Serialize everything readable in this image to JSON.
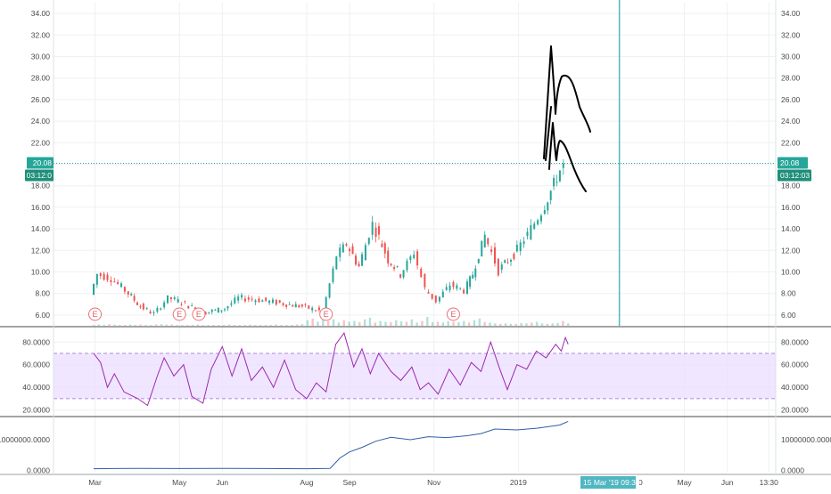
{
  "chart_data": [
    {
      "type": "candlestick",
      "panel": "price",
      "ylim": [
        5,
        35
      ],
      "y_ticks": [
        "34.00",
        "32.00",
        "30.00",
        "28.00",
        "26.00",
        "24.00",
        "22.00",
        "20.00",
        "18.00",
        "16.00",
        "14.00",
        "12.00",
        "10.00",
        "8.00",
        "6.00"
      ],
      "y_tick_values": [
        34,
        32,
        30,
        28,
        26,
        24,
        22,
        20,
        18,
        16,
        14,
        12,
        10,
        8,
        6
      ],
      "last_price": 20.08,
      "price_tag": "20.08",
      "countdown_tag": "03:12:03",
      "countdown_tag_left": "03:12:0",
      "earnings_marker": "E",
      "earnings_dates": [
        "2018-03-01",
        "2018-05-01",
        "2018-05-15",
        "2018-08-15",
        "2018-11-15"
      ],
      "key_points": [
        {
          "date": "2018-02-28",
          "close": 7.9
        },
        {
          "date": "2018-03-05",
          "close": 9.8
        },
        {
          "date": "2018-03-15",
          "close": 9.4
        },
        {
          "date": "2018-03-25",
          "close": 8.3
        },
        {
          "date": "2018-04-05",
          "close": 6.8
        },
        {
          "date": "2018-04-15",
          "close": 6.1
        },
        {
          "date": "2018-04-25",
          "close": 7.6
        },
        {
          "date": "2018-05-05",
          "close": 7.2
        },
        {
          "date": "2018-05-20",
          "close": 6.2
        },
        {
          "date": "2018-06-05",
          "close": 6.6
        },
        {
          "date": "2018-06-15",
          "close": 7.6
        },
        {
          "date": "2018-06-30",
          "close": 7.4
        },
        {
          "date": "2018-07-15",
          "close": 7.1
        },
        {
          "date": "2018-07-31",
          "close": 6.8
        },
        {
          "date": "2018-08-15",
          "close": 6.3
        },
        {
          "date": "2018-08-25",
          "close": 11.5
        },
        {
          "date": "2018-09-01",
          "close": 12.6
        },
        {
          "date": "2018-09-10",
          "close": 10.5
        },
        {
          "date": "2018-09-20",
          "close": 14.5
        },
        {
          "date": "2018-10-01",
          "close": 11.2
        },
        {
          "date": "2018-10-10",
          "close": 9.8
        },
        {
          "date": "2018-10-20",
          "close": 11.8
        },
        {
          "date": "2018-10-28",
          "close": 8.4
        },
        {
          "date": "2018-11-05",
          "close": 7.3
        },
        {
          "date": "2018-11-15",
          "close": 8.8
        },
        {
          "date": "2018-11-25",
          "close": 8.3
        },
        {
          "date": "2018-12-01",
          "close": 9.8
        },
        {
          "date": "2018-12-10",
          "close": 13.4
        },
        {
          "date": "2018-12-20",
          "close": 10.2
        },
        {
          "date": "2018-12-31",
          "close": 11.6
        },
        {
          "date": "2019-01-10",
          "close": 13.5
        },
        {
          "date": "2019-01-20",
          "close": 15.6
        },
        {
          "date": "2019-01-31",
          "close": 18.8
        },
        {
          "date": "2019-02-05",
          "close": 20.08
        }
      ],
      "volume_bars": [
        2,
        3,
        2,
        4,
        3,
        2,
        2,
        3,
        2,
        3,
        2,
        2,
        3,
        4,
        3,
        3,
        2,
        2,
        2,
        2,
        3,
        2,
        2,
        2,
        2,
        2,
        3,
        2,
        2,
        2,
        3,
        2,
        2,
        2,
        2,
        3,
        2,
        2,
        2,
        3,
        4,
        14,
        18,
        10,
        22,
        12,
        16,
        8,
        14,
        10,
        12,
        9,
        16,
        20,
        8,
        12,
        10,
        9,
        14,
        11,
        10,
        16,
        8,
        12,
        22,
        9,
        10,
        8,
        12,
        10,
        9,
        12,
        8,
        14,
        18,
        9,
        8,
        6,
        5,
        6,
        5,
        5,
        7,
        6,
        8,
        10,
        6,
        5,
        6,
        7,
        12,
        6
      ]
    },
    {
      "type": "line",
      "panel": "rsi",
      "ylim": [
        15,
        92
      ],
      "y_ticks": [
        "80.0000",
        "60.0000",
        "40.0000",
        "20.0000"
      ],
      "y_tick_values": [
        80,
        60,
        40,
        20
      ],
      "band": [
        30,
        70
      ],
      "series": [
        {
          "points": [
            {
              "date": "2018-02-28",
              "value": 70
            },
            {
              "date": "2018-03-05",
              "value": 62
            },
            {
              "date": "2018-03-10",
              "value": 40
            },
            {
              "date": "2018-03-15",
              "value": 52
            },
            {
              "date": "2018-03-22",
              "value": 36
            },
            {
              "date": "2018-04-01",
              "value": 30
            },
            {
              "date": "2018-04-08",
              "value": 24
            },
            {
              "date": "2018-04-15",
              "value": 50
            },
            {
              "date": "2018-04-20",
              "value": 66
            },
            {
              "date": "2018-04-27",
              "value": 50
            },
            {
              "date": "2018-05-04",
              "value": 60
            },
            {
              "date": "2018-05-10",
              "value": 32
            },
            {
              "date": "2018-05-18",
              "value": 26
            },
            {
              "date": "2018-05-24",
              "value": 56
            },
            {
              "date": "2018-06-01",
              "value": 76
            },
            {
              "date": "2018-06-08",
              "value": 50
            },
            {
              "date": "2018-06-15",
              "value": 74
            },
            {
              "date": "2018-06-22",
              "value": 46
            },
            {
              "date": "2018-06-30",
              "value": 58
            },
            {
              "date": "2018-07-08",
              "value": 40
            },
            {
              "date": "2018-07-16",
              "value": 64
            },
            {
              "date": "2018-07-24",
              "value": 38
            },
            {
              "date": "2018-08-01",
              "value": 30
            },
            {
              "date": "2018-08-08",
              "value": 44
            },
            {
              "date": "2018-08-15",
              "value": 36
            },
            {
              "date": "2018-08-22",
              "value": 78
            },
            {
              "date": "2018-08-28",
              "value": 88
            },
            {
              "date": "2018-09-04",
              "value": 58
            },
            {
              "date": "2018-09-10",
              "value": 74
            },
            {
              "date": "2018-09-16",
              "value": 52
            },
            {
              "date": "2018-09-22",
              "value": 70
            },
            {
              "date": "2018-10-01",
              "value": 54
            },
            {
              "date": "2018-10-08",
              "value": 46
            },
            {
              "date": "2018-10-16",
              "value": 58
            },
            {
              "date": "2018-10-22",
              "value": 38
            },
            {
              "date": "2018-10-28",
              "value": 44
            },
            {
              "date": "2018-11-04",
              "value": 34
            },
            {
              "date": "2018-11-12",
              "value": 56
            },
            {
              "date": "2018-11-20",
              "value": 42
            },
            {
              "date": "2018-11-28",
              "value": 62
            },
            {
              "date": "2018-12-05",
              "value": 54
            },
            {
              "date": "2018-12-12",
              "value": 80
            },
            {
              "date": "2018-12-18",
              "value": 58
            },
            {
              "date": "2018-12-24",
              "value": 38
            },
            {
              "date": "2018-12-31",
              "value": 60
            },
            {
              "date": "2019-01-07",
              "value": 56
            },
            {
              "date": "2019-01-14",
              "value": 72
            },
            {
              "date": "2019-01-21",
              "value": 66
            },
            {
              "date": "2019-01-28",
              "value": 78
            },
            {
              "date": "2019-02-01",
              "value": 72
            },
            {
              "date": "2019-02-04",
              "value": 84
            },
            {
              "date": "2019-02-06",
              "value": 78
            }
          ]
        }
      ]
    },
    {
      "type": "line",
      "panel": "obv",
      "ylim": [
        -500000,
        17000000
      ],
      "y_ticks": [
        "10000000.0000",
        "0.0000"
      ],
      "y_tick_values": [
        10000000,
        0
      ],
      "series": [
        {
          "points": [
            {
              "date": "2018-02-28",
              "value": 500000
            },
            {
              "date": "2018-04-01",
              "value": 600000
            },
            {
              "date": "2018-05-01",
              "value": 550000
            },
            {
              "date": "2018-06-01",
              "value": 600000
            },
            {
              "date": "2018-07-01",
              "value": 550000
            },
            {
              "date": "2018-08-01",
              "value": 500000
            },
            {
              "date": "2018-08-18",
              "value": 600000
            },
            {
              "date": "2018-08-25",
              "value": 4000000
            },
            {
              "date": "2018-09-01",
              "value": 6000000
            },
            {
              "date": "2018-09-10",
              "value": 7500000
            },
            {
              "date": "2018-09-20",
              "value": 9500000
            },
            {
              "date": "2018-10-01",
              "value": 10800000
            },
            {
              "date": "2018-10-15",
              "value": 10000000
            },
            {
              "date": "2018-10-28",
              "value": 11000000
            },
            {
              "date": "2018-11-10",
              "value": 10700000
            },
            {
              "date": "2018-11-25",
              "value": 11300000
            },
            {
              "date": "2018-12-05",
              "value": 12000000
            },
            {
              "date": "2018-12-15",
              "value": 13500000
            },
            {
              "date": "2018-12-31",
              "value": 13200000
            },
            {
              "date": "2019-01-15",
              "value": 13800000
            },
            {
              "date": "2019-01-31",
              "value": 14800000
            },
            {
              "date": "2019-02-06",
              "value": 16000000
            }
          ]
        }
      ]
    }
  ],
  "x_axis": {
    "ticks": [
      {
        "label": "Mar",
        "date": "2018-03-01"
      },
      {
        "label": "May",
        "date": "2018-05-01"
      },
      {
        "label": "Jun",
        "date": "2018-06-01"
      },
      {
        "label": "Aug",
        "date": "2018-08-01"
      },
      {
        "label": "Sep",
        "date": "2018-09-01"
      },
      {
        "label": "Nov",
        "date": "2018-11-01"
      },
      {
        "label": "2019",
        "date": "2019-01-01"
      },
      {
        "label": "May",
        "date": "2019-05-01"
      },
      {
        "label": "Jun",
        "date": "2019-06-01"
      },
      {
        "label": "13:30",
        "date": "2019-07-01"
      }
    ],
    "partial_tick": "0",
    "cursor_label": "15 Mar '19",
    "cursor_time": "09:30",
    "cursor_date": "2019-03-15"
  },
  "colors": {
    "up": "#26a69a",
    "down": "#ef5350",
    "rsi_line": "#9c27b0",
    "rsi_band": "#eadcff",
    "obv_line": "#2f5fa8",
    "price_line": "#26a69a",
    "cursor": "#4fb6c2",
    "drawing": "#000000",
    "marker": "#e57373"
  }
}
